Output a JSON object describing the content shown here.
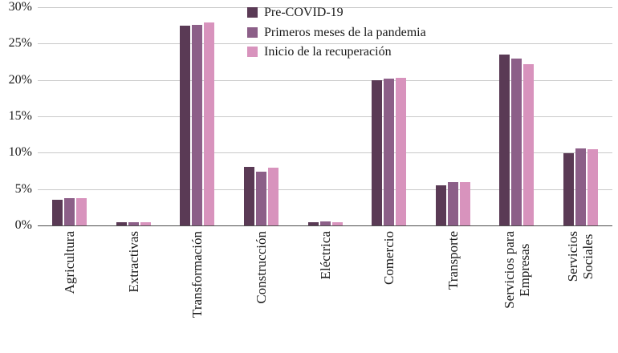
{
  "chart_data": {
    "type": "bar",
    "title": "",
    "xlabel": "",
    "ylabel": "",
    "ylim": [
      0,
      30
    ],
    "ytick_step": 5,
    "ytick_suffix": "%",
    "grid": true,
    "legend_position": "top-center",
    "categories": [
      "Agricultura",
      "Extractivas",
      "Transformación",
      "Construcción",
      "Eléctrica",
      "Comercio",
      "Transporte",
      "Servicios para\nEmpresas",
      "Servicios\nSociales"
    ],
    "series": [
      {
        "name": "Pre-COVID-19",
        "color": "#5a3a55",
        "values": [
          3.5,
          0.4,
          27.5,
          8.1,
          0.4,
          20.0,
          5.5,
          23.5,
          9.9
        ]
      },
      {
        "name": "Primeros meses de la pandemia",
        "color": "#8c5f88",
        "values": [
          3.7,
          0.4,
          27.6,
          7.4,
          0.5,
          20.2,
          6.0,
          22.9,
          10.6
        ]
      },
      {
        "name": "Inicio de la recuperación",
        "color": "#d893bd",
        "values": [
          3.7,
          0.4,
          27.9,
          7.9,
          0.4,
          20.3,
          6.0,
          22.2,
          10.5
        ]
      }
    ]
  }
}
